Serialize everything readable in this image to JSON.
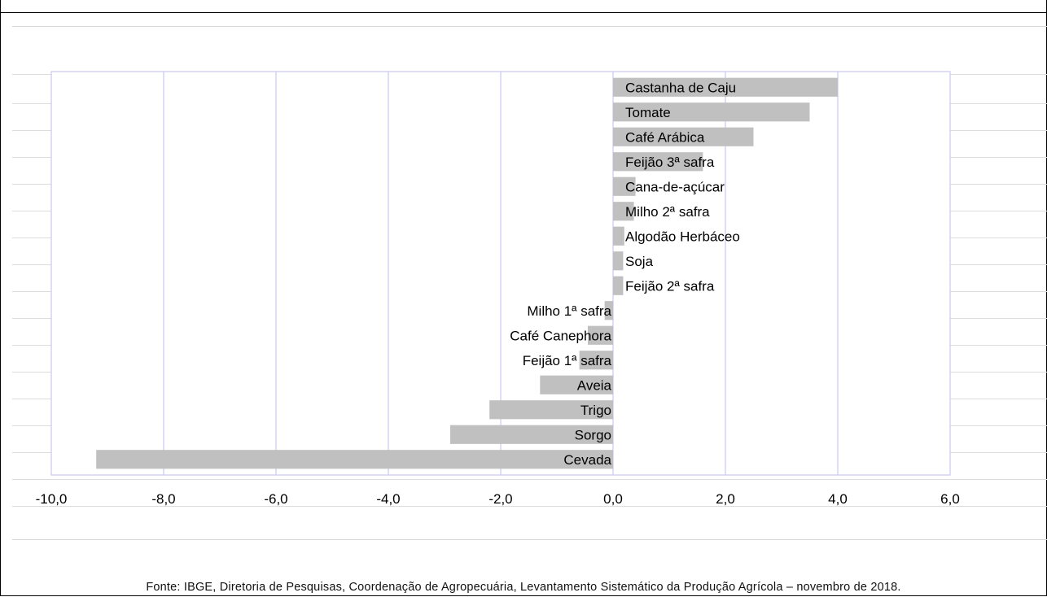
{
  "chart_data": {
    "type": "bar",
    "orientation": "horizontal",
    "categories": [
      "Castanha de Caju",
      "Tomate",
      "Café Arábica",
      "Feijão 3ª safra",
      "Cana-de-açúcar",
      "Milho 2ª safra",
      "Algodão Herbáceo",
      "Soja",
      "Feijão 2ª safra",
      "Milho 1ª safra",
      "Café Canephora",
      "Feijão 1ª safra",
      "Aveia",
      "Trigo",
      "Sorgo",
      "Cevada"
    ],
    "values": [
      4.0,
      3.5,
      2.5,
      1.6,
      0.4,
      0.37,
      0.2,
      0.18,
      0.18,
      -0.15,
      -0.45,
      -0.6,
      -1.3,
      -2.2,
      -2.9,
      -9.2
    ],
    "xlim": [
      -10.0,
      6.0
    ],
    "xticks": [
      "-10,0",
      "-8,0",
      "-6,0",
      "-4,0",
      "-2,0",
      "0,0",
      "2,0",
      "4,0",
      "6,0"
    ],
    "xtick_values": [
      -10,
      -8,
      -6,
      -4,
      -2,
      0,
      2,
      4,
      6
    ],
    "bar_color": "#c0c0c0",
    "grid_color": "#c8c8f0",
    "grid": true,
    "legend": "none"
  },
  "source_note": "Fonte: IBGE, Diretoria de Pesquisas, Coordenação de Agropecuária, Levantamento Sistemático da Produção Agrícola – novembro de 2018."
}
